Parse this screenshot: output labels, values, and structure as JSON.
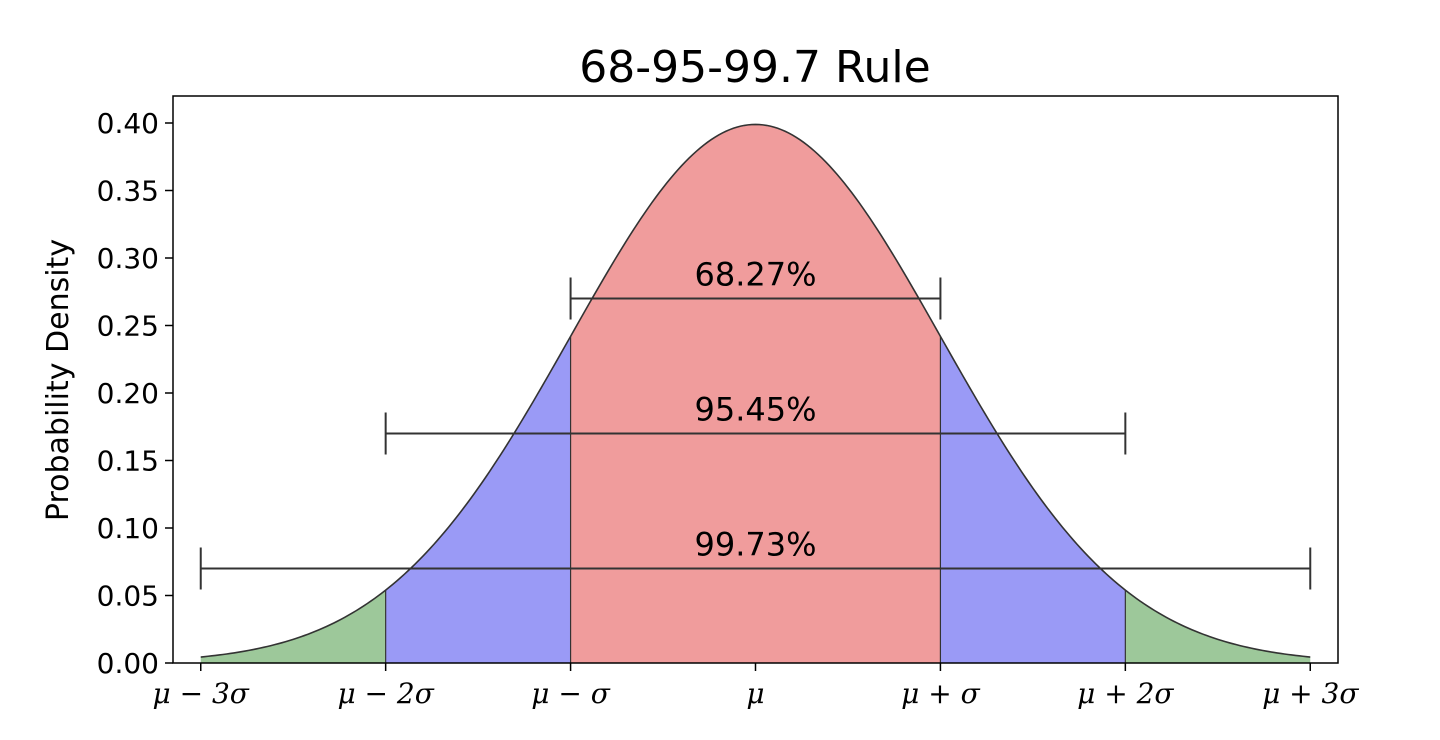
{
  "chart_data": {
    "type": "area",
    "title": "68-95-99.7 Rule",
    "xlabel": "",
    "ylabel": "Probability Density",
    "xlim": [
      -3.15,
      3.15
    ],
    "ylim": [
      0,
      0.42
    ],
    "grid": false,
    "curve": {
      "distribution": "standard normal",
      "mean": 0,
      "std": 1,
      "x_range": [
        -3,
        3
      ],
      "peak": 0.3989
    },
    "y_ticks": [
      {
        "value": 0.0,
        "label": "0.00"
      },
      {
        "value": 0.05,
        "label": "0.05"
      },
      {
        "value": 0.1,
        "label": "0.10"
      },
      {
        "value": 0.15,
        "label": "0.15"
      },
      {
        "value": 0.2,
        "label": "0.20"
      },
      {
        "value": 0.25,
        "label": "0.25"
      },
      {
        "value": 0.3,
        "label": "0.30"
      },
      {
        "value": 0.35,
        "label": "0.35"
      },
      {
        "value": 0.4,
        "label": "0.40"
      }
    ],
    "x_ticks": [
      {
        "value": -3,
        "label": "μ − 3σ"
      },
      {
        "value": -2,
        "label": "μ − 2σ"
      },
      {
        "value": -1,
        "label": "μ − σ"
      },
      {
        "value": 0,
        "label": "μ"
      },
      {
        "value": 1,
        "label": "μ + σ"
      },
      {
        "value": 2,
        "label": "μ + 2σ"
      },
      {
        "value": 3,
        "label": "μ + 3σ"
      }
    ],
    "regions": [
      {
        "from": -3,
        "to": -2,
        "color": "#9dc89a"
      },
      {
        "from": -2,
        "to": -1,
        "color": "#9a9af6"
      },
      {
        "from": -1,
        "to": 1,
        "color": "#f09c9c"
      },
      {
        "from": 1,
        "to": 2,
        "color": "#9a9af6"
      },
      {
        "from": 2,
        "to": 3,
        "color": "#9dc89a"
      }
    ],
    "intervals": [
      {
        "label": "68.27%",
        "from": -1,
        "to": 1,
        "y": 0.27
      },
      {
        "label": "95.45%",
        "from": -2,
        "to": 2,
        "y": 0.17
      },
      {
        "label": "99.73%",
        "from": -3,
        "to": 3,
        "y": 0.07
      }
    ],
    "colors": {
      "curve": "#333333",
      "axes": "#000000",
      "interval_lines": "#333333"
    }
  }
}
